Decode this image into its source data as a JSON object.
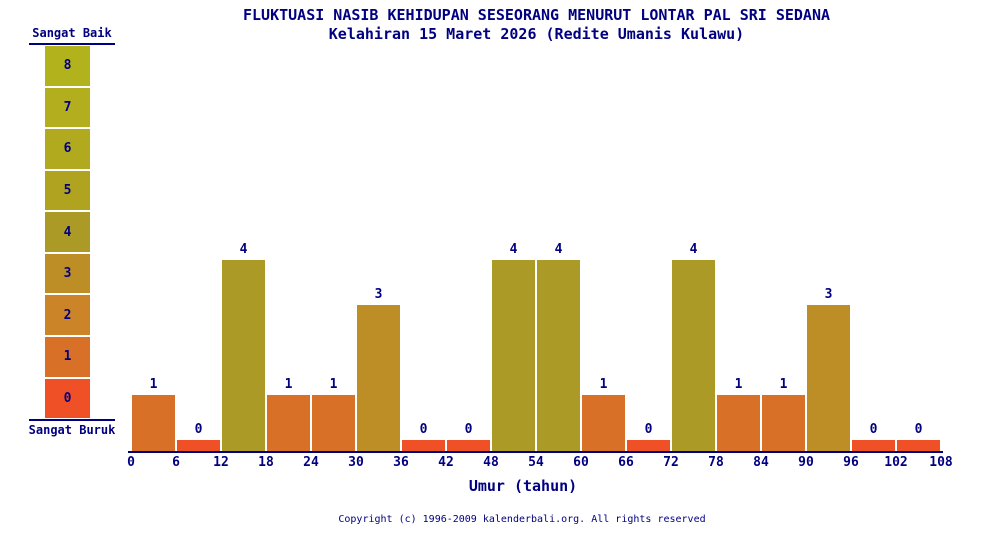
{
  "title": {
    "line1": "FLUKTUASI NASIB KEHIDUPAN SESEORANG MENURUT LONTAR PAL SRI SEDANA",
    "line2": "Kelahiran 15 Maret 2026 (Redite Umanis Kulawu)"
  },
  "scale": {
    "top_label": "Sangat Baik",
    "bottom_label": "Sangat Buruk",
    "levels": [
      {
        "value": 8,
        "color": "#b2b21c"
      },
      {
        "value": 7,
        "color": "#b2ae1d"
      },
      {
        "value": 6,
        "color": "#b1a91e"
      },
      {
        "value": 5,
        "color": "#b0a320"
      },
      {
        "value": 4,
        "color": "#ab9a26"
      },
      {
        "value": 3,
        "color": "#bd8e26"
      },
      {
        "value": 2,
        "color": "#cb8427"
      },
      {
        "value": 1,
        "color": "#d97028"
      },
      {
        "value": 0,
        "color": "#f05026"
      }
    ]
  },
  "chart_data": {
    "type": "bar",
    "title": "FLUKTUASI NASIB KEHIDUPAN SESEORANG MENURUT LONTAR PAL SRI SEDANA",
    "subtitle": "Kelahiran 15 Maret 2026 (Redite Umanis Kulawu)",
    "xlabel": "Umur (tahun)",
    "ylabel": "",
    "x_ticks": [
      0,
      6,
      12,
      18,
      24,
      30,
      36,
      42,
      48,
      54,
      60,
      66,
      72,
      78,
      84,
      90,
      96,
      102,
      108
    ],
    "bin_width_years": 6,
    "categories": [
      "0-6",
      "6-12",
      "12-18",
      "18-24",
      "24-30",
      "30-36",
      "36-42",
      "42-48",
      "48-54",
      "54-60",
      "60-66",
      "66-72",
      "72-78",
      "78-84",
      "84-90",
      "90-96",
      "96-102",
      "102-108"
    ],
    "values": [
      1,
      0,
      4,
      1,
      1,
      3,
      0,
      0,
      4,
      4,
      1,
      0,
      4,
      1,
      1,
      3,
      0,
      0
    ],
    "ylim": [
      0,
      8
    ],
    "value_labels": true,
    "grid": false,
    "legend_position": "left-scale"
  },
  "footer": "Copyright (c) 1996-2009 kalenderbali.org. All rights reserved",
  "colors": {
    "text": "#000080",
    "background": "#ffffff"
  }
}
